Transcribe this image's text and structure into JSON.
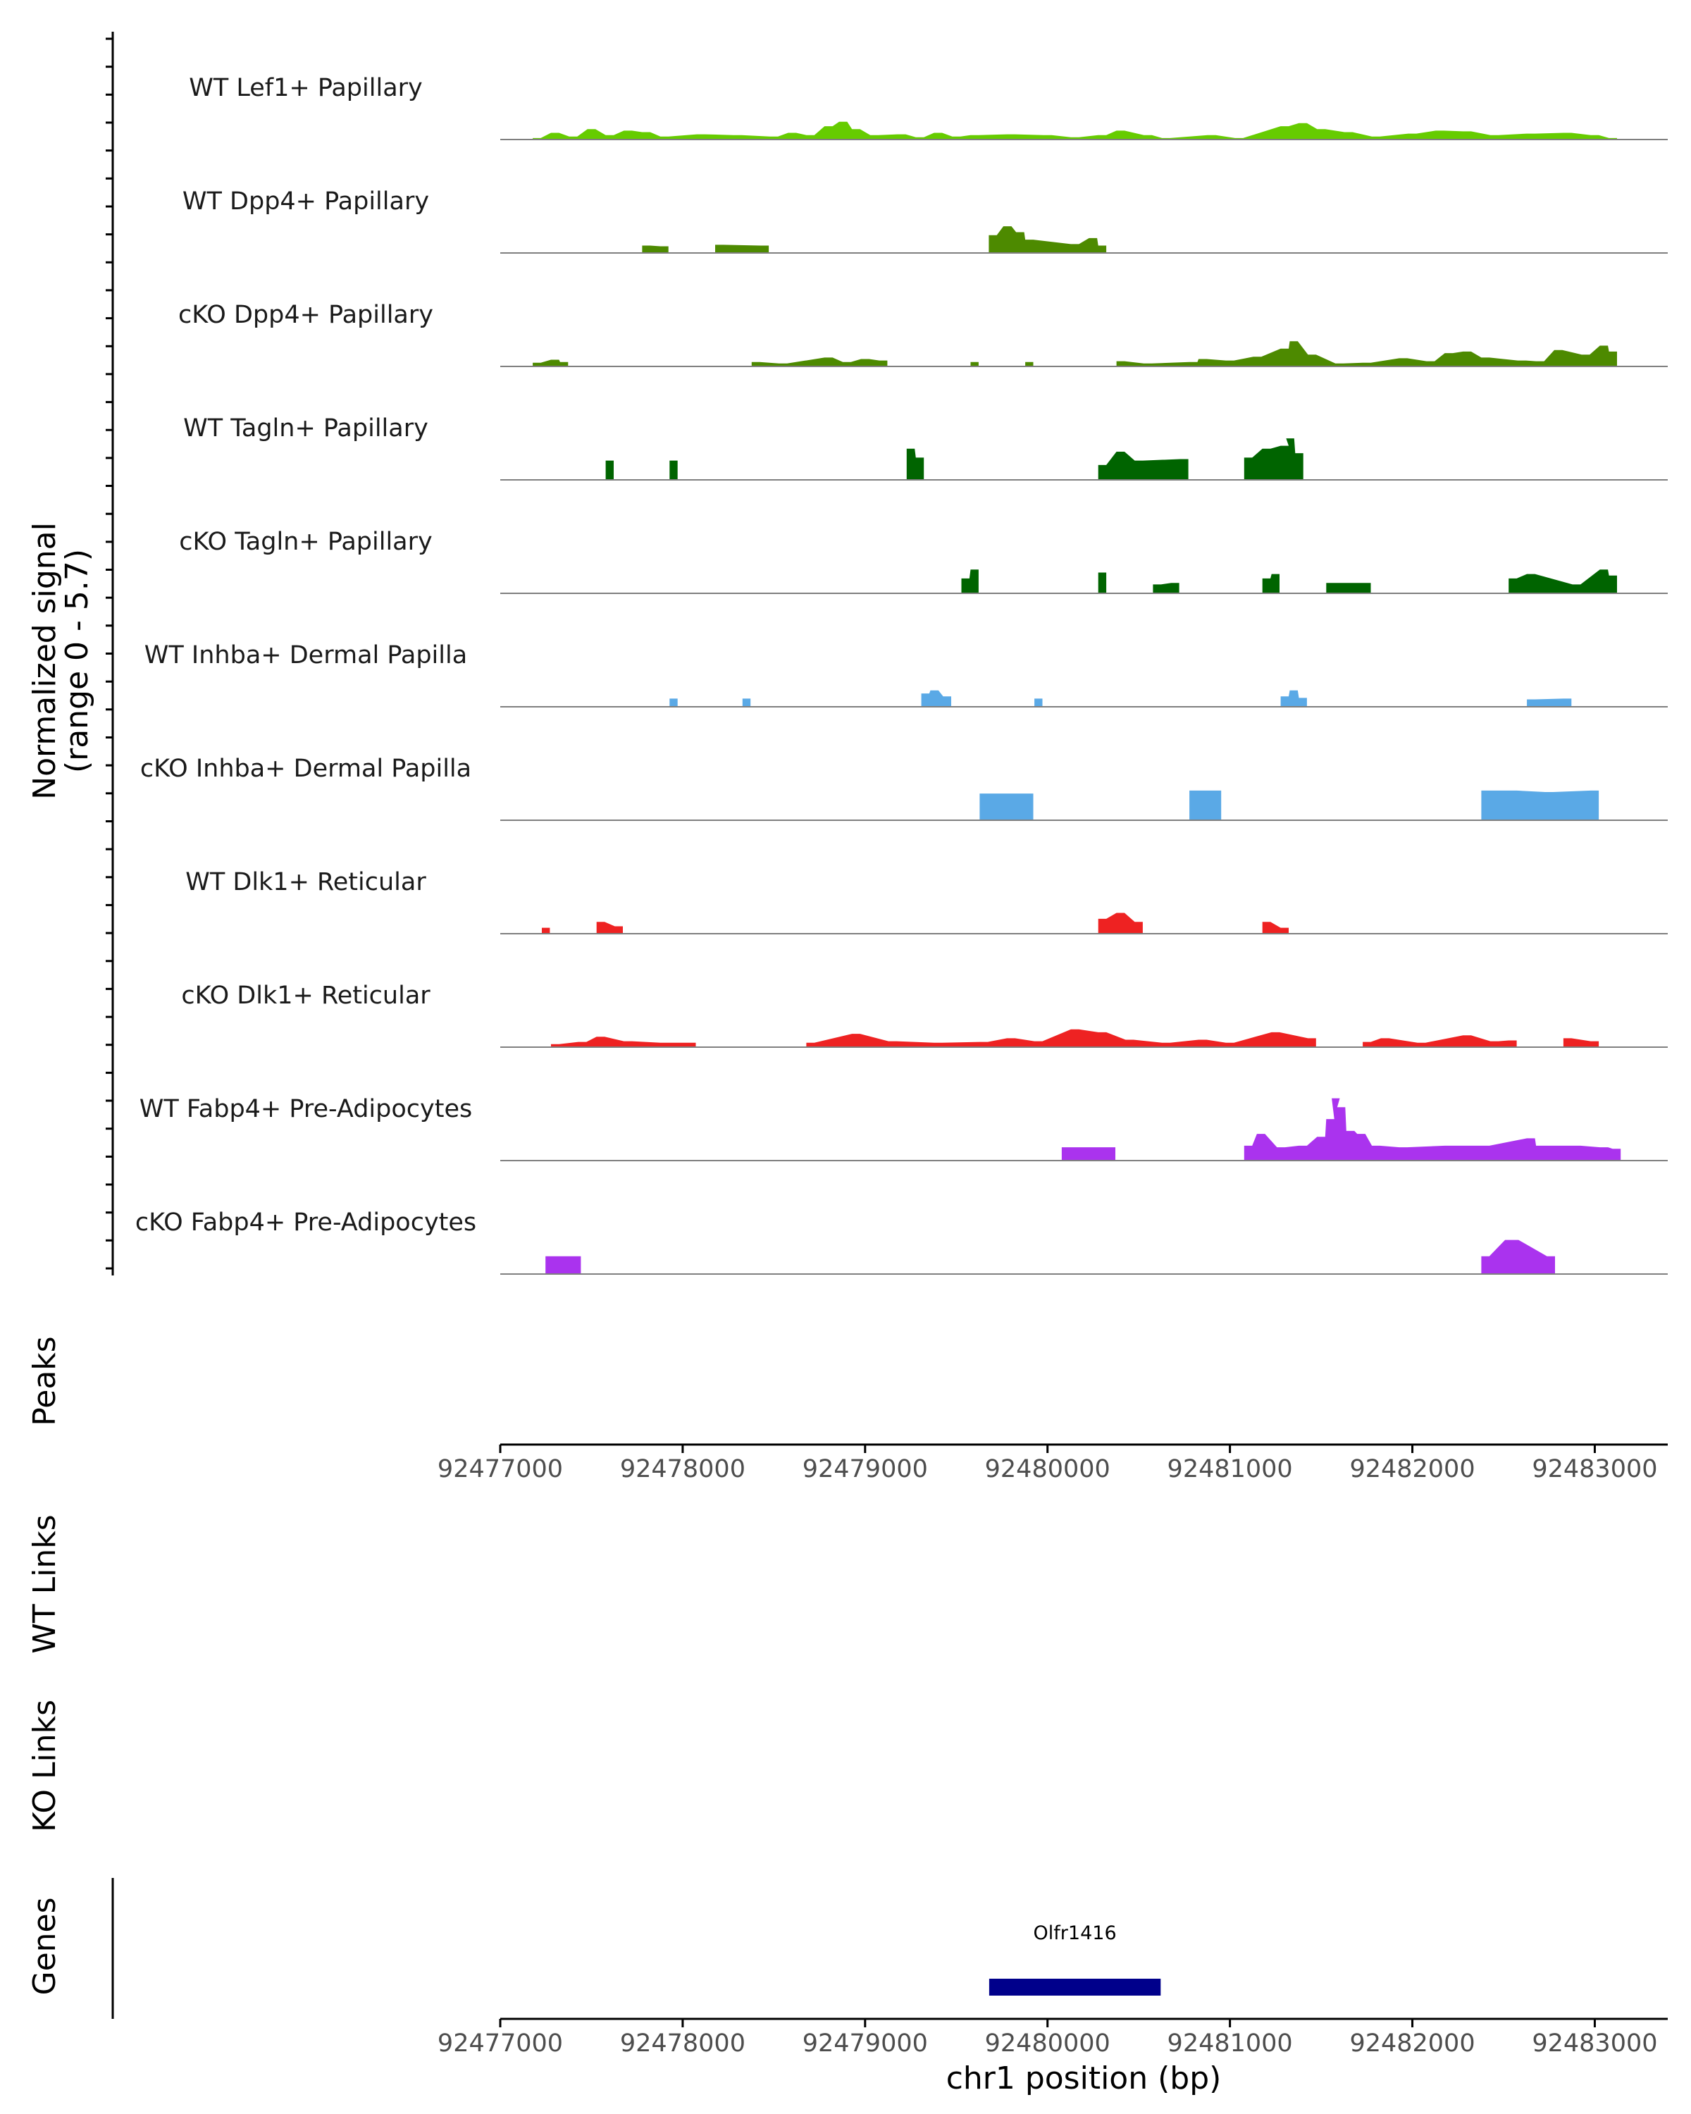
{
  "chart_data": {
    "type": "area",
    "region": {
      "chrom": "chr1",
      "start": 92477000,
      "end": 92483400
    },
    "coverage": {
      "ylabel_line1": "Normalized signal",
      "ylabel_line2": "(range 0 - 5.7)",
      "ymax": 5.7,
      "tracks": [
        {
          "name": "WT Lef1+ Papillary",
          "color": "#66cc00",
          "points": [
            [
              92477200,
              0.1
            ],
            [
              92477300,
              0.45
            ],
            [
              92477400,
              0.2
            ],
            [
              92477500,
              0.7
            ],
            [
              92477600,
              0.3
            ],
            [
              92477700,
              0.6
            ],
            [
              92477800,
              0.5
            ],
            [
              92477900,
              0.2
            ],
            [
              92478100,
              0.35
            ],
            [
              92478300,
              0.3
            ],
            [
              92478500,
              0.2
            ],
            [
              92478600,
              0.45
            ],
            [
              92478700,
              0.3
            ],
            [
              92478800,
              0.9
            ],
            [
              92478880,
              1.2
            ],
            [
              92478950,
              0.7
            ],
            [
              92479050,
              0.3
            ],
            [
              92479200,
              0.35
            ],
            [
              92479300,
              0.15
            ],
            [
              92479400,
              0.45
            ],
            [
              92479500,
              0.2
            ],
            [
              92479600,
              0.3
            ],
            [
              92479800,
              0.35
            ],
            [
              92480000,
              0.3
            ],
            [
              92480150,
              0.15
            ],
            [
              92480300,
              0.3
            ],
            [
              92480400,
              0.6
            ],
            [
              92480550,
              0.3
            ],
            [
              92480650,
              0.1
            ],
            [
              92480900,
              0.3
            ],
            [
              92481050,
              0.1
            ],
            [
              92481300,
              0.9
            ],
            [
              92481400,
              1.1
            ],
            [
              92481500,
              0.7
            ],
            [
              92481650,
              0.5
            ],
            [
              92481800,
              0.2
            ],
            [
              92482000,
              0.4
            ],
            [
              92482150,
              0.6
            ],
            [
              92482300,
              0.55
            ],
            [
              92482450,
              0.3
            ],
            [
              92482650,
              0.4
            ],
            [
              92482850,
              0.45
            ],
            [
              92483000,
              0.3
            ],
            [
              92483100,
              0.1
            ]
          ]
        },
        {
          "name": "WT Dpp4+ Papillary",
          "color": "#4d8a00",
          "points": [
            [
              92477800,
              0.5
            ],
            [
              92477900,
              0.45
            ],
            [
              92478200,
              0.55
            ],
            [
              92478450,
              0.5
            ],
            [
              92479700,
              1.2
            ],
            [
              92479780,
              1.8
            ],
            [
              92479850,
              1.4
            ],
            [
              92479900,
              0.9
            ],
            [
              92480150,
              0.6
            ],
            [
              92480250,
              1.0
            ],
            [
              92480300,
              0.5
            ]
          ]
        },
        {
          "name": "cKO Dpp4+ Papillary",
          "color": "#4d8a00",
          "points": [
            [
              92477200,
              0.25
            ],
            [
              92477300,
              0.45
            ],
            [
              92477350,
              0.3
            ],
            [
              92478400,
              0.3
            ],
            [
              92478550,
              0.2
            ],
            [
              92478800,
              0.6
            ],
            [
              92478900,
              0.3
            ],
            [
              92479000,
              0.5
            ],
            [
              92479100,
              0.4
            ],
            [
              92479600,
              0.3
            ],
            [
              92479900,
              0.3
            ],
            [
              92480400,
              0.35
            ],
            [
              92480550,
              0.2
            ],
            [
              92480800,
              0.3
            ],
            [
              92480850,
              0.5
            ],
            [
              92481000,
              0.4
            ],
            [
              92481150,
              0.65
            ],
            [
              92481300,
              1.2
            ],
            [
              92481350,
              1.7
            ],
            [
              92481450,
              0.8
            ],
            [
              92481600,
              0.2
            ],
            [
              92481750,
              0.25
            ],
            [
              92481950,
              0.55
            ],
            [
              92482100,
              0.35
            ],
            [
              92482200,
              0.9
            ],
            [
              92482300,
              1.0
            ],
            [
              92482400,
              0.6
            ],
            [
              92482600,
              0.4
            ],
            [
              92482700,
              0.35
            ],
            [
              92482800,
              1.1
            ],
            [
              92482950,
              0.8
            ],
            [
              92483050,
              1.4
            ],
            [
              92483100,
              1.0
            ]
          ]
        },
        {
          "name": "WT Tagln+ Papillary",
          "color": "#006400",
          "points": [
            [
              92477600,
              1.3
            ],
            [
              92477950,
              1.3
            ],
            [
              92479250,
              2.1
            ],
            [
              92479300,
              1.5
            ],
            [
              92480300,
              1.0
            ],
            [
              92480400,
              1.9
            ],
            [
              92480500,
              1.3
            ],
            [
              92480750,
              1.4
            ],
            [
              92481100,
              1.5
            ],
            [
              92481200,
              2.1
            ],
            [
              92481300,
              2.3
            ],
            [
              92481330,
              2.8
            ],
            [
              92481380,
              1.8
            ]
          ]
        },
        {
          "name": "cKO Tagln+ Papillary",
          "color": "#006400",
          "points": [
            [
              92479550,
              1.0
            ],
            [
              92479600,
              1.6
            ],
            [
              92480300,
              1.4
            ],
            [
              92480600,
              0.6
            ],
            [
              92480700,
              0.7
            ],
            [
              92481200,
              1.0
            ],
            [
              92481250,
              1.3
            ],
            [
              92481550,
              0.7
            ],
            [
              92481750,
              0.7
            ],
            [
              92482550,
              1.0
            ],
            [
              92482650,
              1.3
            ],
            [
              92482900,
              0.6
            ],
            [
              92483050,
              1.6
            ],
            [
              92483100,
              1.2
            ]
          ]
        },
        {
          "name": "WT Inhba+ Dermal Papilla",
          "color": "#5aa9e6",
          "points": [
            [
              92477950,
              0.55
            ],
            [
              92478350,
              0.55
            ],
            [
              92479330,
              0.9
            ],
            [
              92479380,
              1.1
            ],
            [
              92479450,
              0.7
            ],
            [
              92479950,
              0.55
            ],
            [
              92481300,
              0.7
            ],
            [
              92481350,
              1.1
            ],
            [
              92481400,
              0.6
            ],
            [
              92482650,
              0.5
            ],
            [
              92482850,
              0.55
            ]
          ]
        },
        {
          "name": "cKO Inhba+ Dermal Papilla",
          "color": "#5aa9e6",
          "points": [
            [
              92479650,
              1.8
            ],
            [
              92479900,
              1.8
            ],
            [
              92480800,
              2.0
            ],
            [
              92480930,
              2.0
            ],
            [
              92482400,
              2.0
            ],
            [
              92482550,
              2.0
            ],
            [
              92482750,
              1.9
            ],
            [
              92483000,
              2.0
            ]
          ]
        },
        {
          "name": "WT Dlk1+ Reticular",
          "color": "#ee2222",
          "points": [
            [
              92477250,
              0.4
            ],
            [
              92477550,
              0.8
            ],
            [
              92477650,
              0.5
            ],
            [
              92480300,
              1.0
            ],
            [
              92480400,
              1.4
            ],
            [
              92480500,
              0.8
            ],
            [
              92481200,
              0.8
            ],
            [
              92481300,
              0.4
            ]
          ]
        },
        {
          "name": "cKO Dlk1+ Reticular",
          "color": "#ee2222",
          "points": [
            [
              92477300,
              0.2
            ],
            [
              92477450,
              0.35
            ],
            [
              92477550,
              0.7
            ],
            [
              92477700,
              0.4
            ],
            [
              92477900,
              0.3
            ],
            [
              92478050,
              0.3
            ],
            [
              92478700,
              0.3
            ],
            [
              92478950,
              0.9
            ],
            [
              92479150,
              0.4
            ],
            [
              92479400,
              0.3
            ],
            [
              92479650,
              0.35
            ],
            [
              92479800,
              0.6
            ],
            [
              92479950,
              0.4
            ],
            [
              92480150,
              1.2
            ],
            [
              92480300,
              1.0
            ],
            [
              92480450,
              0.5
            ],
            [
              92480650,
              0.3
            ],
            [
              92480850,
              0.5
            ],
            [
              92481000,
              0.3
            ],
            [
              92481250,
              1.0
            ],
            [
              92481450,
              0.6
            ],
            [
              92481750,
              0.35
            ],
            [
              92481850,
              0.6
            ],
            [
              92482050,
              0.3
            ],
            [
              92482300,
              0.8
            ],
            [
              92482450,
              0.4
            ],
            [
              92482550,
              0.45
            ],
            [
              92482850,
              0.6
            ],
            [
              92483000,
              0.4
            ]
          ]
        },
        {
          "name": "WT Fabp4+ Pre-Adipocytes",
          "color": "#aa33ee",
          "points": [
            [
              92480100,
              0.9
            ],
            [
              92480350,
              0.9
            ],
            [
              92481100,
              1.0
            ],
            [
              92481170,
              1.8
            ],
            [
              92481280,
              0.9
            ],
            [
              92481400,
              1.0
            ],
            [
              92481500,
              1.6
            ],
            [
              92481550,
              2.8
            ],
            [
              92481580,
              4.2
            ],
            [
              92481610,
              3.6
            ],
            [
              92481660,
              2.0
            ],
            [
              92481720,
              1.8
            ],
            [
              92481800,
              1.0
            ],
            [
              92481950,
              0.9
            ],
            [
              92482200,
              1.0
            ],
            [
              92482400,
              1.0
            ],
            [
              92482650,
              1.5
            ],
            [
              92482700,
              1.0
            ],
            [
              92482900,
              1.0
            ],
            [
              92483050,
              0.9
            ],
            [
              92483120,
              0.8
            ]
          ]
        },
        {
          "name": "cKO Fabp4+ Pre-Adipocytes",
          "color": "#aa33ee",
          "points": [
            [
              92477270,
              1.2
            ],
            [
              92477420,
              1.2
            ],
            [
              92482400,
              1.2
            ],
            [
              92482530,
              2.3
            ],
            [
              92482560,
              2.3
            ],
            [
              92482760,
              1.2
            ]
          ]
        }
      ]
    },
    "side_titles": [
      "Peaks",
      "WT Links",
      "KO Links",
      "Genes"
    ],
    "genes": [
      {
        "name": "Olfr1416",
        "start": 92479680,
        "end": 92480620,
        "color": "#00008b"
      }
    ],
    "xaxis": {
      "ticks": [
        92477000,
        92478000,
        92479000,
        92480000,
        92481000,
        92482000,
        92483000
      ],
      "tick_labels": [
        "92477000",
        "92478000",
        "92479000",
        "92480000",
        "92481000",
        "92482000",
        "92483000"
      ],
      "label": "chr1 position (bp)"
    }
  }
}
